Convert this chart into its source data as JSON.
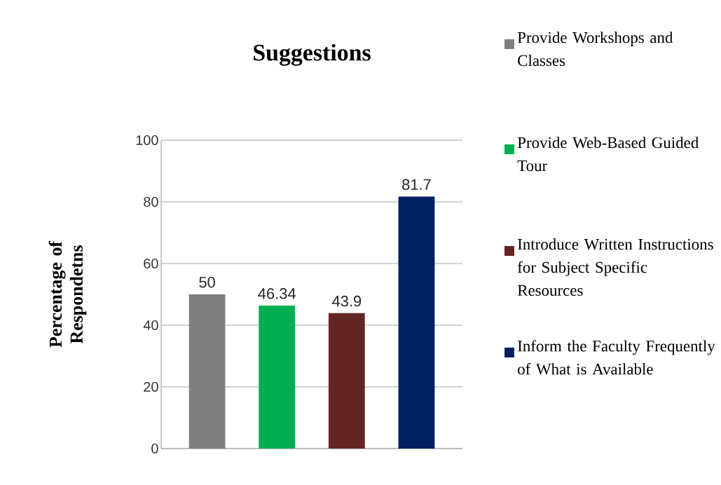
{
  "chart_data": {
    "type": "bar",
    "title": "Suggestions",
    "ylabel": "Percentage of Respondetns",
    "categories": [
      null
    ],
    "series": [
      {
        "name": "Provide Workshops and Classes",
        "color": "#7f7f7f",
        "values": [
          50
        ]
      },
      {
        "name": "Provide Web-Based Guided Tour",
        "color": "#00b050",
        "values": [
          46.34
        ]
      },
      {
        "name": "Introduce Written Instructions for Subject Specific Resources",
        "color": "#632523",
        "values": [
          43.9
        ]
      },
      {
        "name": "Inform the Faculty Frequently of What is Available",
        "color": "#002060",
        "values": [
          81.7
        ]
      }
    ],
    "ylim": [
      0,
      100
    ],
    "yticks": [
      0,
      20,
      40,
      60,
      80,
      100
    ],
    "grid": "y",
    "legend": "right",
    "data_labels": true
  }
}
